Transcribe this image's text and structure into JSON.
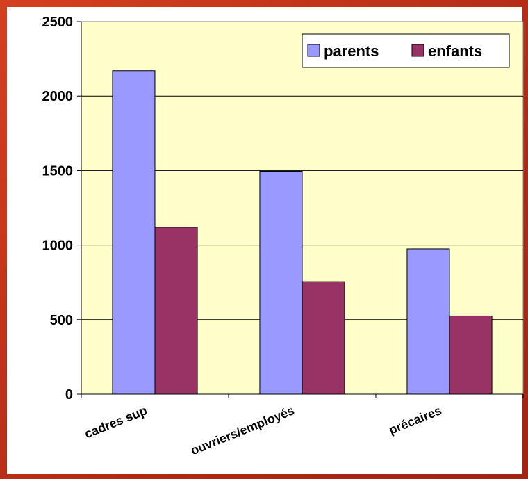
{
  "chart_data": {
    "type": "bar",
    "categories": [
      "cadres sup",
      "ouvriers/employés",
      "précaires"
    ],
    "series": [
      {
        "name": "parents",
        "values": [
          2170,
          1495,
          975
        ],
        "color": "#9999ff"
      },
      {
        "name": "enfants",
        "values": [
          1120,
          755,
          525
        ],
        "color": "#993366"
      }
    ],
    "ylim": [
      0,
      2500
    ],
    "yticks": [
      0,
      500,
      1000,
      1500,
      2000,
      2500
    ],
    "grid": true,
    "legend_position": "top-right",
    "plot_background": "#ffffcc",
    "frame_color": "#c0392b"
  }
}
